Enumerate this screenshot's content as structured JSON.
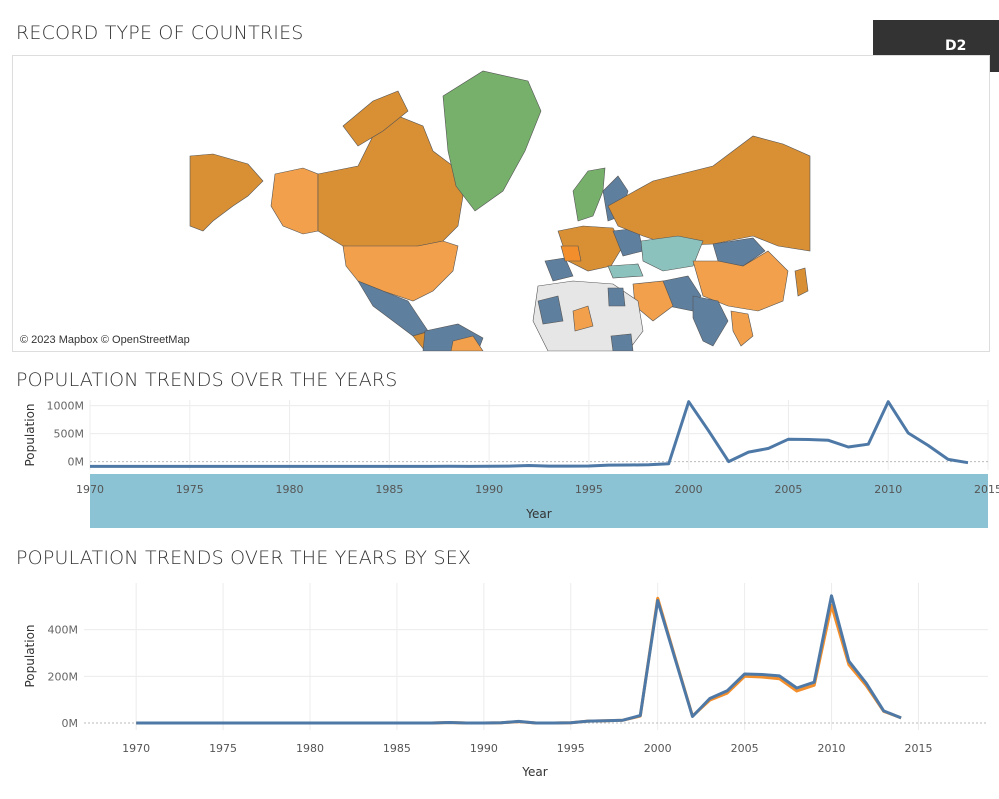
{
  "dashboard": {
    "map_title": "RECORD TYPE OF COUNTRIES",
    "badge_label": "D2",
    "map_attribution": "© 2023 Mapbox © OpenStreetMap",
    "pop_title": "POPULATION TRENDS OVER THE YEARS",
    "sex_title": "POPULATION TRENDS OVER THE YEARS BY SEX"
  },
  "colors": {
    "blue": "#4e79a7",
    "orange": "#f28e2b",
    "axis_band": "#8cc3d4",
    "orange_dark": "#d98f34",
    "orange_light": "#f2a04b",
    "green": "#76b06b",
    "teal": "#8cc2bd",
    "slate": "#5f7f9f",
    "grey": "#e6e6e6"
  },
  "chart_data": [
    {
      "type": "line",
      "ylabel": "Population",
      "xlabel": "Year",
      "x_ticks": [
        1970,
        1975,
        1980,
        1985,
        1990,
        1995,
        2000,
        2005,
        2010,
        2015
      ],
      "y_ticks": [
        0,
        500,
        1000
      ],
      "y_tick_labels": [
        "0M",
        "500M",
        "1000M"
      ],
      "xlim": [
        1970,
        2015
      ],
      "ylim": [
        -150,
        1100
      ],
      "series": [
        {
          "color": "#4e79a7",
          "x": [
            1970,
            1971,
            1972,
            1973,
            1974,
            1975,
            1976,
            1977,
            1978,
            1979,
            1980,
            1981,
            1982,
            1983,
            1984,
            1985,
            1986,
            1987,
            1988,
            1989,
            1990,
            1991,
            1992,
            1993,
            1994,
            1995,
            1996,
            1997,
            1998,
            1999,
            2000,
            2001,
            2002,
            2003,
            2004,
            2005,
            2006,
            2007,
            2008,
            2009,
            2010,
            2011,
            2012,
            2013,
            2014
          ],
          "y": [
            -85,
            -85,
            -85,
            -85,
            -85,
            -85,
            -85,
            -85,
            -85,
            -85,
            -85,
            -85,
            -85,
            -85,
            -85,
            -85,
            -85,
            -85,
            -82,
            -85,
            -84,
            -80,
            -70,
            -80,
            -80,
            -78,
            -62,
            -60,
            -58,
            -40,
            1070,
            550,
            0,
            170,
            235,
            400,
            395,
            380,
            260,
            310,
            1070,
            510,
            290,
            40,
            -20
          ]
        }
      ]
    },
    {
      "type": "line",
      "ylabel": "Population",
      "xlabel": "Year",
      "x_ticks": [
        1970,
        1975,
        1980,
        1985,
        1990,
        1995,
        2000,
        2005,
        2010,
        2015
      ],
      "y_ticks": [
        0,
        200,
        400
      ],
      "y_tick_labels": [
        "0M",
        "200M",
        "400M"
      ],
      "xlim": [
        1967,
        2019
      ],
      "ylim": [
        -30,
        600
      ],
      "series": [
        {
          "color": "#f28e2b",
          "x": [
            1970,
            1971,
            1972,
            1973,
            1974,
            1975,
            1976,
            1977,
            1978,
            1979,
            1980,
            1981,
            1982,
            1983,
            1984,
            1985,
            1986,
            1987,
            1988,
            1989,
            1990,
            1991,
            1992,
            1993,
            1994,
            1995,
            1996,
            1997,
            1998,
            1999,
            2000,
            2001,
            2002,
            2003,
            2004,
            2005,
            2006,
            2007,
            2008,
            2009,
            2010,
            2011,
            2012,
            2013,
            2014
          ],
          "y": [
            0,
            0,
            0,
            0,
            0,
            0,
            0,
            0,
            0,
            0,
            0,
            0,
            0,
            0,
            0,
            0,
            0,
            0,
            2,
            0,
            0,
            1,
            6,
            0,
            0,
            1,
            8,
            10,
            12,
            30,
            535,
            280,
            30,
            98,
            128,
            200,
            197,
            190,
            137,
            162,
            505,
            250,
            160,
            50,
            22
          ]
        },
        {
          "color": "#4e79a7",
          "x": [
            1970,
            1971,
            1972,
            1973,
            1974,
            1975,
            1976,
            1977,
            1978,
            1979,
            1980,
            1981,
            1982,
            1983,
            1984,
            1985,
            1986,
            1987,
            1988,
            1989,
            1990,
            1991,
            1992,
            1993,
            1994,
            1995,
            1996,
            1997,
            1998,
            1999,
            2000,
            2001,
            2002,
            2003,
            2004,
            2005,
            2006,
            2007,
            2008,
            2009,
            2010,
            2011,
            2012,
            2013,
            2014
          ],
          "y": [
            0,
            0,
            0,
            0,
            0,
            0,
            0,
            0,
            0,
            0,
            0,
            0,
            0,
            0,
            0,
            0,
            0,
            0,
            2,
            0,
            0,
            1,
            7,
            0,
            0,
            1,
            8,
            10,
            12,
            32,
            525,
            275,
            28,
            105,
            138,
            210,
            208,
            202,
            150,
            175,
            545,
            265,
            170,
            52,
            22
          ]
        }
      ]
    }
  ]
}
